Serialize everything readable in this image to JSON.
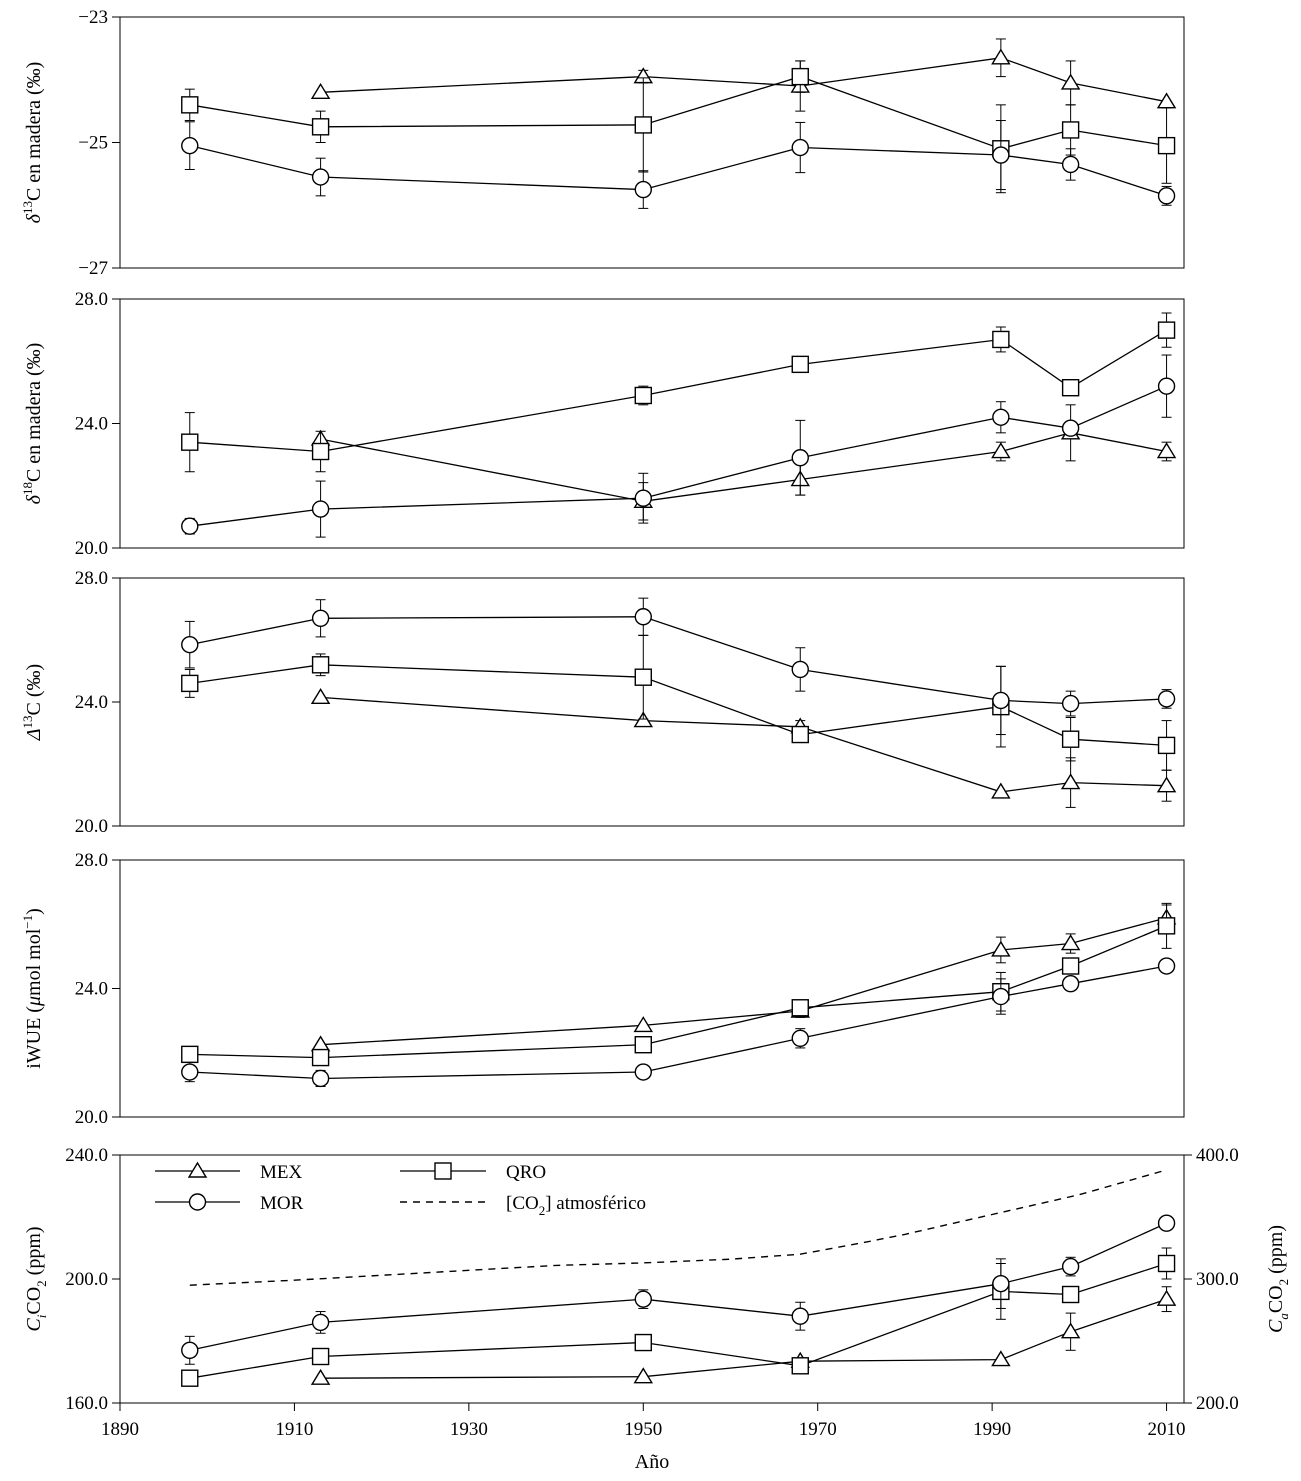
{
  "chart_data": {
    "type": "line",
    "x_label": "Año",
    "x_ticks": [
      1890,
      1910,
      1930,
      1950,
      1970,
      1990,
      2010
    ],
    "xlim": [
      1890,
      2012
    ],
    "panels": [
      {
        "id": "d13c",
        "ylabel_parts": [
          "δ",
          "13",
          "C en madera (‰)"
        ],
        "ylim": [
          -27,
          -23
        ],
        "y_ticks": [
          -27,
          -25,
          -23
        ],
        "tick_labels": [
          "−27",
          "−25",
          "−23"
        ],
        "series": [
          {
            "name": "MEX",
            "marker": "triangle",
            "x": [
              1913,
              1950,
              1968,
              1991,
              1999,
              2010
            ],
            "y": [
              -24.2,
              -23.95,
              -24.1,
              -23.65,
              -24.05,
              -24.35
            ],
            "err": [
              0,
              0.1,
              0.4,
              0.3,
              0.35,
              0
            ]
          },
          {
            "name": "QRO",
            "marker": "square",
            "x": [
              1898,
              1913,
              1950,
              1968,
              1991,
              1999,
              2010
            ],
            "y": [
              -24.4,
              -24.75,
              -24.72,
              -23.95,
              -25.1,
              -24.8,
              -25.05
            ],
            "err": [
              0.25,
              0.25,
              0.75,
              0.25,
              0.7,
              0.4,
              0.6
            ]
          },
          {
            "name": "MOR",
            "marker": "circle",
            "x": [
              1898,
              1913,
              1950,
              1968,
              1991,
              1999,
              2010
            ],
            "y": [
              -25.05,
              -25.55,
              -25.75,
              -25.08,
              -25.2,
              -25.35,
              -25.85
            ],
            "err": [
              0.38,
              0.3,
              0.3,
              0.4,
              0.55,
              0.25,
              0.15
            ]
          }
        ]
      },
      {
        "id": "d18o",
        "ylabel_parts": [
          "δ",
          "18",
          "C en madera (‰)"
        ],
        "ylim": [
          20,
          28
        ],
        "y_ticks": [
          20,
          24,
          28
        ],
        "tick_labels": [
          "20.0",
          "24.0",
          "28.0"
        ],
        "series": [
          {
            "name": "MEX",
            "marker": "triangle",
            "x": [
              1913,
              1950,
              1968,
              1991,
              1999,
              2010
            ],
            "y": [
              23.5,
              21.5,
              22.2,
              23.1,
              23.7,
              23.1
            ],
            "err": [
              0,
              0.6,
              0.5,
              0.3,
              0.9,
              0.3
            ]
          },
          {
            "name": "QRO",
            "marker": "square",
            "x": [
              1898,
              1913,
              1950,
              1968,
              1991,
              1999,
              2010
            ],
            "y": [
              23.4,
              23.1,
              24.9,
              25.9,
              26.7,
              25.15,
              27.0
            ],
            "err": [
              0.95,
              0.65,
              0.3,
              0,
              0.4,
              0,
              0.55
            ]
          },
          {
            "name": "MOR",
            "marker": "circle",
            "x": [
              1898,
              1913,
              1950,
              1968,
              1991,
              1999,
              2010
            ],
            "y": [
              20.7,
              21.25,
              21.6,
              22.9,
              24.2,
              23.85,
              25.2
            ],
            "err": [
              0.25,
              0.9,
              0.8,
              1.2,
              0.5,
              0,
              1.0
            ]
          }
        ]
      },
      {
        "id": "D13c",
        "ylabel_parts": [
          "Δ",
          "13",
          "C (‰)"
        ],
        "ylim": [
          20,
          28
        ],
        "y_ticks": [
          20,
          24,
          28
        ],
        "tick_labels": [
          "20.0",
          "24.0",
          "28.0"
        ],
        "series": [
          {
            "name": "MEX",
            "marker": "triangle",
            "x": [
              1913,
              1950,
              1968,
              1991,
              1999,
              2010
            ],
            "y": [
              24.15,
              23.4,
              23.2,
              21.1,
              21.4,
              21.3
            ],
            "err": [
              0,
              0,
              0.2,
              0,
              0.8,
              0.5
            ]
          },
          {
            "name": "QRO",
            "marker": "square",
            "x": [
              1898,
              1913,
              1950,
              1968,
              1991,
              1999,
              2010
            ],
            "y": [
              24.6,
              25.2,
              24.8,
              22.95,
              23.85,
              22.8,
              22.6
            ],
            "err": [
              0.45,
              0.35,
              1.35,
              0.25,
              1.3,
              0.7,
              0.8
            ]
          },
          {
            "name": "MOR",
            "marker": "circle",
            "x": [
              1898,
              1913,
              1950,
              1968,
              1991,
              1999,
              2010
            ],
            "y": [
              25.85,
              26.7,
              26.75,
              25.05,
              24.05,
              23.95,
              24.1
            ],
            "err": [
              0.75,
              0.6,
              0.6,
              0.7,
              1.1,
              0.4,
              0.3
            ]
          }
        ]
      },
      {
        "id": "iwue",
        "ylabel_parts": [
          "iWUE (",
          "μ",
          "mol mol",
          "−1",
          ")"
        ],
        "ylim": [
          20,
          28
        ],
        "y_ticks": [
          20,
          24,
          28
        ],
        "tick_labels": [
          "20.0",
          "24.0",
          "28.0"
        ],
        "series": [
          {
            "name": "MEX",
            "marker": "triangle",
            "x": [
              1913,
              1950,
              1968,
              1991,
              1999,
              2010
            ],
            "y": [
              22.25,
              22.85,
              23.3,
              25.2,
              25.4,
              26.2
            ],
            "err": [
              0,
              0,
              0.2,
              0.4,
              0.3,
              0.4
            ]
          },
          {
            "name": "QRO",
            "marker": "square",
            "x": [
              1898,
              1913,
              1950,
              1968,
              1991,
              1999,
              2010
            ],
            "y": [
              21.95,
              21.85,
              22.25,
              23.4,
              23.9,
              24.7,
              25.95
            ],
            "err": [
              0,
              0,
              0,
              0.2,
              0.6,
              0,
              0.7
            ]
          },
          {
            "name": "MOR",
            "marker": "circle",
            "x": [
              1898,
              1913,
              1950,
              1968,
              1991,
              1999,
              2010
            ],
            "y": [
              21.4,
              21.2,
              21.4,
              22.45,
              23.75,
              24.15,
              24.7
            ],
            "err": [
              0.3,
              0.25,
              0.2,
              0.3,
              0.55,
              0,
              0
            ]
          }
        ]
      },
      {
        "id": "ci",
        "ylabel_parts": [
          "C",
          "i",
          "CO",
          "2",
          " (ppm)"
        ],
        "ylim": [
          160,
          240
        ],
        "y_ticks": [
          160,
          200,
          240
        ],
        "tick_labels": [
          "160.0",
          "200.0",
          "240.0"
        ],
        "right_axis": {
          "ylabel_parts": [
            "C",
            "a",
            "CO",
            "2",
            " (ppm)"
          ],
          "ylim": [
            200,
            400
          ],
          "y_ticks": [
            200,
            300,
            400
          ],
          "tick_labels": [
            "200.0",
            "300.0",
            "400.0"
          ]
        },
        "series": [
          {
            "name": "MEX",
            "marker": "triangle",
            "x": [
              1913,
              1950,
              1968,
              1991,
              1999,
              2010
            ],
            "y": [
              168,
              168.5,
              173.5,
              174,
              183,
              193.5
            ],
            "err": [
              0,
              0,
              0,
              0,
              6,
              4
            ]
          },
          {
            "name": "QRO",
            "marker": "square",
            "x": [
              1898,
              1913,
              1950,
              1968,
              1991,
              1999,
              2010
            ],
            "y": [
              168,
              175,
              179.5,
              172,
              196,
              195,
              205
            ],
            "err": [
              0,
              0,
              0,
              0,
              9,
              0,
              5
            ]
          },
          {
            "name": "MOR",
            "marker": "circle",
            "x": [
              1898,
              1913,
              1950,
              1968,
              1991,
              1999,
              2010
            ],
            "y": [
              177,
              186,
              193.5,
              188,
              198.5,
              204,
              218
            ],
            "err": [
              4.5,
              3.5,
              3,
              4.5,
              8,
              3,
              0
            ]
          }
        ],
        "atmospheric_co2": {
          "name": "[CO2] atmosférico",
          "x": [
            1898,
            1910,
            1920,
            1930,
            1940,
            1950,
            1960,
            1968,
            1975,
            1980,
            1985,
            1990,
            1995,
            2000,
            2005,
            2010
          ],
          "y": [
            295,
            299,
            303,
            307,
            311,
            313,
            316,
            320,
            329,
            336,
            344,
            352,
            360,
            368,
            378,
            388
          ]
        }
      }
    ],
    "legend": {
      "placement": "top-left of bottom panel",
      "entries": [
        {
          "label": "MEX",
          "marker": "triangle",
          "style": "solid"
        },
        {
          "label": "QRO",
          "marker": "square",
          "style": "solid"
        },
        {
          "label": "MOR",
          "marker": "circle",
          "style": "solid"
        },
        {
          "label_parts": [
            "[CO",
            "2",
            "] atmosférico"
          ],
          "style": "dashed"
        }
      ]
    }
  }
}
